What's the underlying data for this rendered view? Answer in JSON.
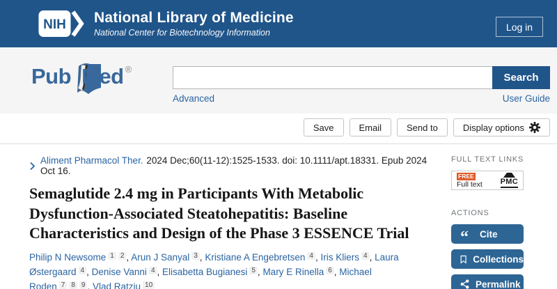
{
  "header": {
    "nih_logo_text": "NIH",
    "title": "National Library of Medicine",
    "subtitle": "National Center for Biotechnology Information",
    "login_label": "Log in"
  },
  "search": {
    "logo_pub": "Pub",
    "logo_med": "Med",
    "logo_registered": "®",
    "input_value": "",
    "button_label": "Search",
    "advanced_link": "Advanced",
    "user_guide_link": "User Guide"
  },
  "toolbar": {
    "save_label": "Save",
    "email_label": "Email",
    "send_to_label": "Send to",
    "display_options_label": "Display options"
  },
  "article": {
    "journal": "Aliment Pharmacol Ther.",
    "citation_rest": " 2024 Dec;60(11-12):1525-1533. doi: 10.1111/apt.18331. Epub 2024 Oct 16.",
    "title": "Semaglutide 2.4 mg in Participants With Metabolic Dysfunction-Associated Steatohepatitis: Baseline Characteristics and Design of the Phase 3 ESSENCE Trial",
    "authors": [
      {
        "name": "Philip N Newsome",
        "affiliations": [
          "1",
          "2"
        ]
      },
      {
        "name": "Arun J Sanyal",
        "affiliations": [
          "3"
        ]
      },
      {
        "name": "Kristiane A Engebretsen",
        "affiliations": [
          "4"
        ]
      },
      {
        "name": "Iris Kliers",
        "affiliations": [
          "4"
        ]
      },
      {
        "name": "Laura Østergaard",
        "affiliations": [
          "4"
        ]
      },
      {
        "name": "Denise Vanni",
        "affiliations": [
          "4"
        ]
      },
      {
        "name": "Elisabetta Bugianesi",
        "affiliations": [
          "5"
        ]
      },
      {
        "name": "Mary E Rinella",
        "affiliations": [
          "6"
        ]
      },
      {
        "name": "Michael Roden",
        "affiliations": [
          "7",
          "8",
          "9"
        ]
      },
      {
        "name": "Vlad Ratziu",
        "affiliations": [
          "10"
        ]
      }
    ]
  },
  "sidebar": {
    "full_text_links_header": "FULL TEXT LINKS",
    "free_badge": "FREE",
    "full_text_label": "Full text",
    "pmc_label": "PMC",
    "actions_header": "ACTIONS",
    "cite_label": "Cite",
    "collections_label": "Collections",
    "permalink_label": "Permalink"
  },
  "colors": {
    "header_bg": "#20558a",
    "action_button": "#2d6594",
    "link": "#2a64a2",
    "free_badge": "#e05a28",
    "search_section_bg": "#f5f5f5"
  }
}
